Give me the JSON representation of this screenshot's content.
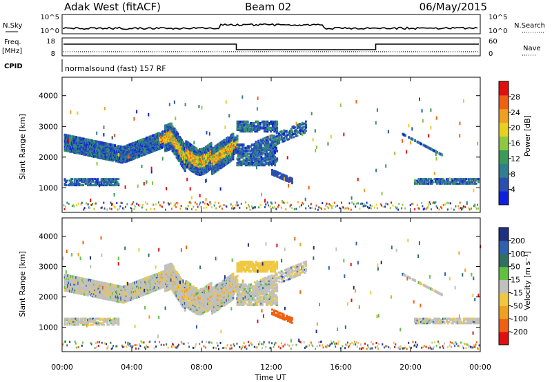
{
  "header": {
    "station": "Adak West (fitACF)",
    "beam": "Beam 02",
    "date": "06/May/2015"
  },
  "strip": {
    "nsky_label": "N.Sky",
    "nsearch_label": "N.Search",
    "log_top": "10^5",
    "log_bottom": "10^0",
    "freq_label": "Freq.",
    "freq_unit": "[MHz]",
    "freq_ticks": [
      "18",
      "8"
    ],
    "nave_label": "Nave",
    "nave_ticks": [
      "60",
      "0"
    ],
    "cpid_label": "CPID",
    "cpid_value": "normalsound (fast) 157 RF"
  },
  "chart_data": [
    {
      "type": "heatmap",
      "name": "power",
      "ylabel": "Slant Range [km]",
      "xlabel": "",
      "x_ticks": [
        "00:00",
        "04:00",
        "08:00",
        "12:00",
        "16:00",
        "20:00",
        "00:00"
      ],
      "xlim_hours": [
        0,
        24
      ],
      "y_ticks": [
        1000,
        2000,
        3000,
        4000
      ],
      "ylim": [
        200,
        4600
      ],
      "colorbar_label": "Power [dB]",
      "colorbar_ticks": [
        "28",
        "24",
        "20",
        "16",
        "12",
        "8",
        "4"
      ],
      "colors": [
        "#1020e0",
        "#2a4fb0",
        "#2f7f8f",
        "#3a9a5a",
        "#8cc840",
        "#e8d020",
        "#f0a020",
        "#f06010",
        "#e01010"
      ]
    },
    {
      "type": "heatmap",
      "name": "velocity",
      "ylabel": "Slant Range [km]",
      "xlabel": "Time UT",
      "x_ticks": [
        "00:00",
        "04:00",
        "08:00",
        "12:00",
        "16:00",
        "20:00",
        "00:00"
      ],
      "xlim_hours": [
        0,
        24
      ],
      "y_ticks": [
        1000,
        2000,
        3000,
        4000
      ],
      "ylim": [
        200,
        4600
      ],
      "colorbar_label": "Velocity [m s⁻¹]",
      "colorbar_ticks": [
        "200",
        "100",
        "50",
        "15",
        "-15",
        "-50",
        "-100",
        "-200"
      ],
      "colors": [
        "#203080",
        "#3060b0",
        "#307060",
        "#60c040",
        "#c0c0c0",
        "#f0c840",
        "#f0a020",
        "#f06010",
        "#e01010"
      ]
    }
  ]
}
